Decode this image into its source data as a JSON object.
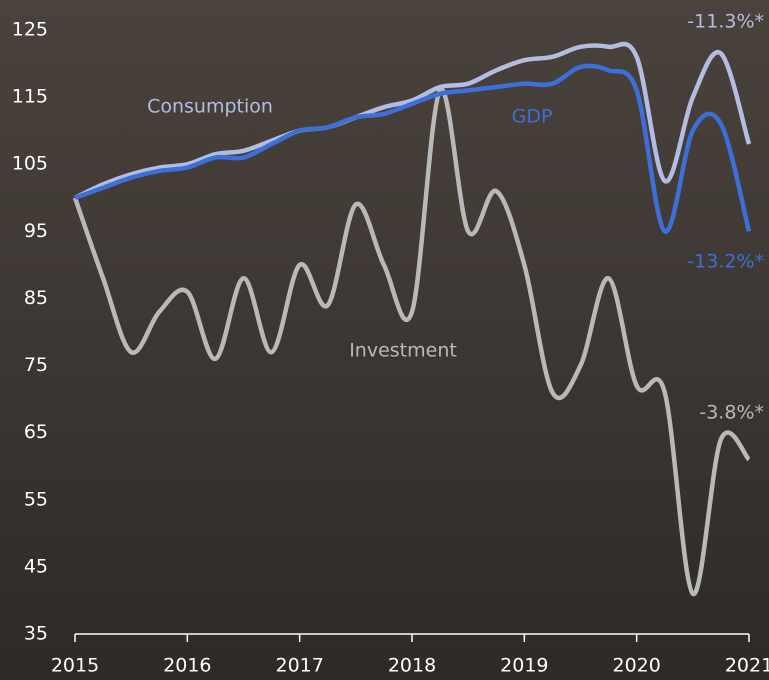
{
  "chart_data": {
    "type": "line",
    "x": [
      2015,
      2015.25,
      2015.5,
      2015.75,
      2016,
      2016.25,
      2016.5,
      2016.75,
      2017,
      2017.25,
      2017.5,
      2017.75,
      2018,
      2018.25,
      2018.5,
      2018.75,
      2019,
      2019.25,
      2019.5,
      2019.75,
      2020,
      2020.25,
      2020.5,
      2020.75,
      2021
    ],
    "series": [
      {
        "name": "Consumption",
        "color": "#b4bce2",
        "values": [
          100,
          102,
          103.5,
          104.5,
          105,
          106.5,
          107,
          108.5,
          110,
          110.5,
          112,
          113.5,
          114.5,
          116.5,
          117,
          119,
          120.5,
          121,
          122.5,
          122.5,
          121,
          102.5,
          115,
          121.5,
          108
        ]
      },
      {
        "name": "GDP",
        "color": "#3c6fd9",
        "values": [
          100,
          101.5,
          103,
          104,
          104.5,
          106,
          106,
          108,
          110,
          110.5,
          112,
          112.5,
          114,
          115.5,
          116,
          116.5,
          117,
          117,
          119.5,
          119,
          116,
          95,
          110,
          111,
          95
        ]
      },
      {
        "name": "Investment",
        "color": "#b9b9b9",
        "values": [
          100,
          88,
          77,
          83,
          86,
          76,
          88,
          77,
          90,
          84,
          99,
          90,
          83,
          116,
          95,
          101,
          90,
          71,
          75,
          88,
          72,
          71,
          41,
          64,
          61
        ]
      }
    ],
    "annotations": [
      {
        "text": "-11.3%*",
        "color": "#b4bce2"
      },
      {
        "text": "-13.2%*",
        "color": "#3c6fd9"
      },
      {
        "text": "-3.8%*",
        "color": "#b9b9b9"
      }
    ],
    "xlim": [
      2015,
      2021
    ],
    "xticks": [
      2015,
      2016,
      2017,
      2018,
      2019,
      2020,
      2021
    ],
    "ylim": [
      35,
      125
    ],
    "yticks": [
      35,
      45,
      55,
      65,
      75,
      85,
      95,
      105,
      115,
      125
    ]
  }
}
